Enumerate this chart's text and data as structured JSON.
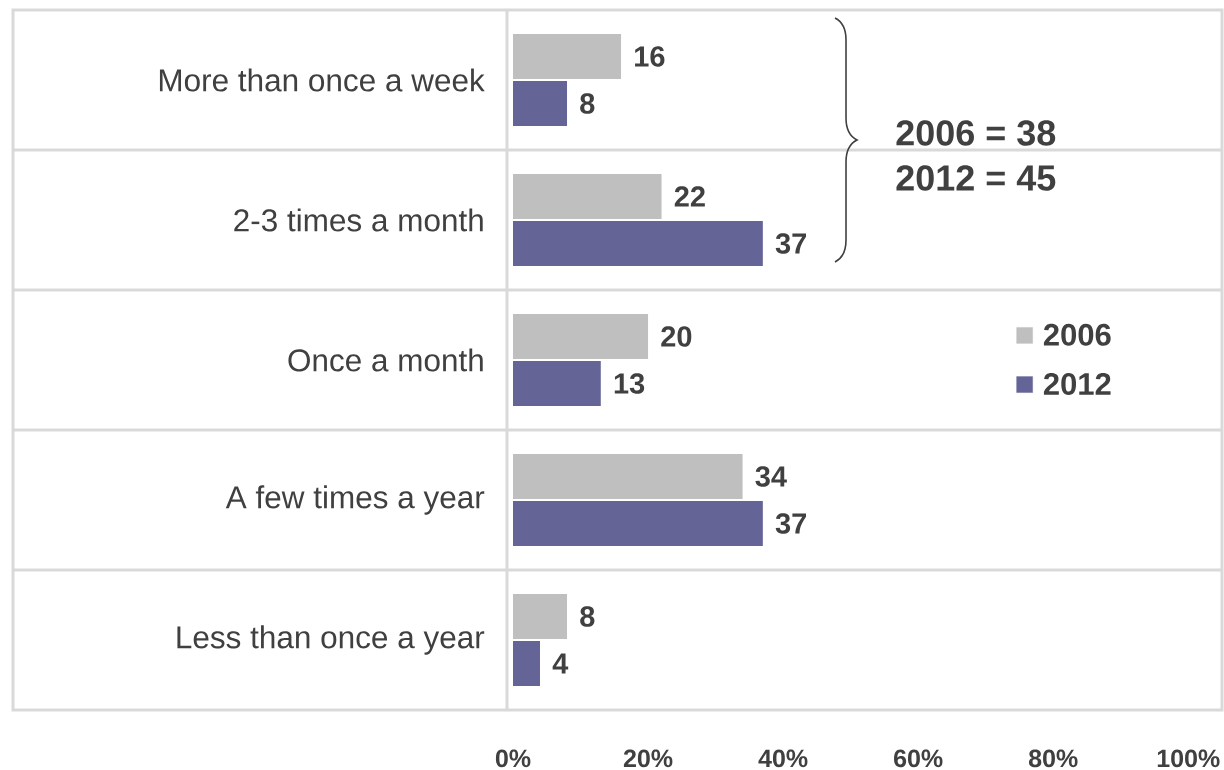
{
  "chart_data": {
    "type": "bar",
    "orientation": "horizontal",
    "categories": [
      "More than once a week",
      "2-3 times a month",
      "Once a month",
      "A few times a year",
      "Less than once a year"
    ],
    "series": [
      {
        "name": "2006",
        "color": "#bfbfbf",
        "values": [
          16,
          22,
          20,
          34,
          8
        ]
      },
      {
        "name": "2012",
        "color": "#646497",
        "values": [
          8,
          37,
          13,
          37,
          4
        ]
      }
    ],
    "xlim": [
      0,
      105
    ],
    "xticks": [
      {
        "value": 0,
        "label": "0%"
      },
      {
        "value": 20,
        "label": "20%"
      },
      {
        "value": 40,
        "label": "40%"
      },
      {
        "value": 60,
        "label": "60%"
      },
      {
        "value": 80,
        "label": "80%"
      },
      {
        "value": 100,
        "label": "100%"
      }
    ],
    "data_labels": true,
    "legend": "right",
    "grid": "y",
    "annotations": [
      "2006 = 38",
      "2012 = 45"
    ]
  }
}
